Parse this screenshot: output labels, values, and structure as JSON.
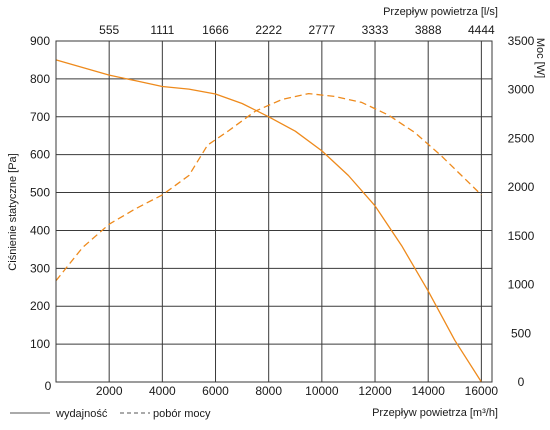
{
  "chart_data": {
    "type": "line",
    "xlabel": "Przepływ powietrza [m³/h]",
    "x2label": "Przepływ powietrza [l/s]",
    "ylabel": "Ciśnienie statyczne [Pa]",
    "y2label": "Moc [W]",
    "xlim": [
      0,
      16400
    ],
    "ylim": [
      0,
      900
    ],
    "y2lim": [
      0,
      3500
    ],
    "x_ticks": [
      "2000",
      "4000",
      "6000",
      "8000",
      "10000",
      "12000",
      "14000",
      "16000"
    ],
    "x2_ticks": [
      "555",
      "1111",
      "1666",
      "2222",
      "2777",
      "3333",
      "3888",
      "4444"
    ],
    "y_ticks": [
      "0",
      "100",
      "200",
      "300",
      "400",
      "500",
      "600",
      "700",
      "800",
      "900"
    ],
    "y2_ticks": [
      "0",
      "500",
      "1000",
      "1500",
      "2000",
      "2500",
      "3000",
      "3500"
    ],
    "grid": true,
    "legend_position": "bottom-left",
    "series": [
      {
        "name": "wydajność",
        "axis": "left",
        "style": "solid",
        "color": "#ee8a1c",
        "x": [
          0,
          1000,
          2000,
          3000,
          4000,
          5000,
          6000,
          7000,
          8000,
          9000,
          10000,
          11000,
          12000,
          13000,
          14000,
          15000,
          16000
        ],
        "y": [
          850,
          830,
          810,
          795,
          780,
          773,
          760,
          735,
          700,
          662,
          610,
          545,
          465,
          360,
          240,
          110,
          0
        ]
      },
      {
        "name": "pobór mocy",
        "axis": "right",
        "style": "dashed",
        "color": "#ee8a1c",
        "x": [
          0,
          1000,
          2000,
          3000,
          4000,
          5000,
          5700,
          6500,
          7500,
          8500,
          9500,
          10500,
          11500,
          12500,
          13500,
          14500,
          16000
        ],
        "y": [
          1040,
          1380,
          1620,
          1780,
          1920,
          2120,
          2430,
          2580,
          2780,
          2900,
          2960,
          2930,
          2870,
          2740,
          2560,
          2320,
          1920
        ]
      }
    ]
  }
}
